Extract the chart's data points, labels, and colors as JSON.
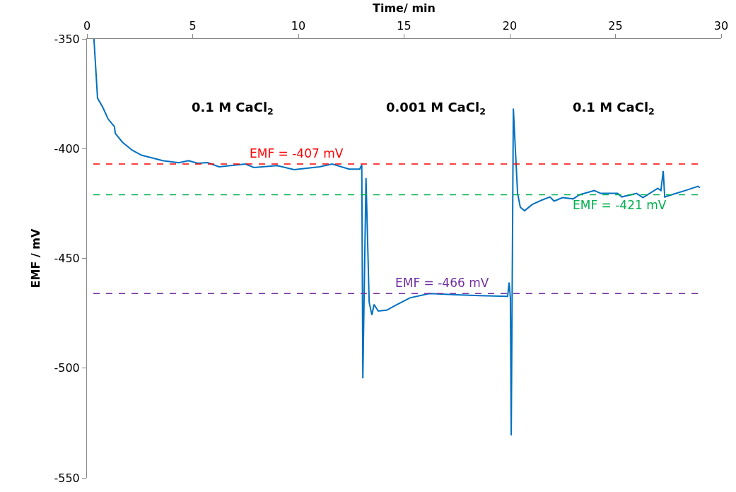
{
  "chart_data": {
    "type": "line",
    "xlabel": "Time/ min",
    "ylabel": "EMF / mV",
    "x": [
      0.33,
      0.4,
      0.5,
      0.74,
      1.0,
      1.3,
      1.34,
      1.67,
      2.14,
      2.58,
      3.0,
      3.58,
      4.35,
      4.8,
      5.25,
      5.7,
      6.25,
      7.5,
      7.9,
      9.0,
      9.8,
      11.0,
      11.6,
      12.4,
      12.9,
      13.0,
      13.05,
      13.2,
      13.35,
      13.48,
      13.58,
      13.78,
      14.18,
      14.6,
      15.28,
      16.2,
      17.5,
      18.6,
      19.9,
      19.97,
      20.03,
      20.07,
      20.17,
      20.37,
      20.5,
      20.7,
      21.07,
      21.5,
      21.9,
      22.1,
      22.5,
      23.0,
      23.3,
      24.0,
      24.3,
      25.1,
      25.3,
      26.0,
      26.3,
      27.0,
      27.15,
      27.26,
      27.33,
      27.76,
      28.4,
      28.9,
      29.0
    ],
    "series": [
      {
        "color": "#0070c0",
        "values": [
          -350,
          -361,
          -377,
          -381,
          -386.5,
          -390,
          -393,
          -397,
          -400.7,
          -403,
          -404,
          -405.5,
          -406.4,
          -405.5,
          -406.7,
          -406.4,
          -408.3,
          -407,
          -408.6,
          -407.7,
          -409.6,
          -408.3,
          -407,
          -409.3,
          -409.3,
          -407.4,
          -504.7,
          -413.4,
          -470,
          -475.8,
          -471,
          -474,
          -473.6,
          -471.4,
          -468,
          -466,
          -466.6,
          -467,
          -467.3,
          -461,
          -468,
          -530.7,
          -381.7,
          -420.4,
          -426.7,
          -428.3,
          -425.4,
          -423.5,
          -422,
          -423.9,
          -422.3,
          -422.9,
          -421,
          -419.1,
          -420.4,
          -420.4,
          -422,
          -420.4,
          -422.3,
          -418.1,
          -419.1,
          -410.2,
          -422,
          -420.7,
          -418.8,
          -417.2,
          -417.8
        ]
      }
    ],
    "xlim": [
      0,
      30
    ],
    "xticks": [
      0,
      5,
      10,
      15,
      20,
      25,
      30
    ],
    "ylim": [
      -550,
      -350
    ],
    "yticks": [
      -550,
      -500,
      -450,
      -400,
      -350
    ],
    "marker": "none",
    "line_style": "solid",
    "ref_lines": [
      {
        "axis": "y",
        "value": -407,
        "label": "EMF = -407 mV",
        "color": "#ff0000",
        "line_style": "dashed"
      },
      {
        "axis": "y",
        "value": -421,
        "label": "EMF = -421 mV",
        "color": "#00b050",
        "line_style": "dashed"
      },
      {
        "axis": "y",
        "value": -466,
        "label": "EMF = -466 mV",
        "color": "#7030a0",
        "line_style": "dashed"
      }
    ],
    "annotations": [
      "0.1 M CaCl$_{2}$",
      "0.001 M CaCl$_{2}$",
      "0.1 M CaCl$_{2}$"
    ]
  }
}
